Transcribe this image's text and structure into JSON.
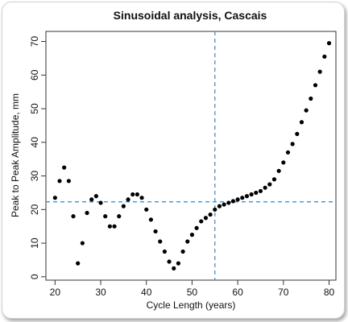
{
  "chart_data": {
    "type": "scatter",
    "title": "Sinusoidal analysis, Cascais",
    "xlabel": "Cycle Length (years)",
    "ylabel": "Peak to Peak Amplitude, mm",
    "xlim": [
      18,
      81.5
    ],
    "ylim": [
      -1,
      73
    ],
    "xticks": [
      "20",
      "30",
      "40",
      "50",
      "60",
      "70",
      "80"
    ],
    "yticks": [
      "0",
      "10",
      "20",
      "30",
      "40",
      "50",
      "60",
      "70"
    ],
    "grid": false,
    "legend": "none",
    "reference_lines": {
      "vertical_x": 55,
      "horizontal_y": 22.3,
      "color": "#4a90c8"
    },
    "point_color": "#000000",
    "x": [
      20,
      21,
      22,
      23,
      24,
      25,
      26,
      27,
      28,
      29,
      30,
      31,
      32,
      33,
      34,
      35,
      36,
      37,
      38,
      39,
      40,
      41,
      42,
      43,
      44,
      45,
      46,
      47,
      48,
      49,
      50,
      51,
      52,
      53,
      54,
      55,
      56,
      57,
      58,
      59,
      60,
      61,
      62,
      63,
      64,
      65,
      66,
      67,
      68,
      69,
      70,
      71,
      72,
      73,
      74,
      75,
      76,
      77,
      78,
      79,
      80
    ],
    "y": [
      23.5,
      28.5,
      32.5,
      28.5,
      18,
      4,
      10,
      19,
      23,
      24,
      22,
      18,
      15,
      15,
      18,
      21,
      23,
      24.5,
      24.5,
      23.5,
      20,
      17,
      13.5,
      10.5,
      7.5,
      4.5,
      2.5,
      4,
      7.5,
      10.5,
      12.5,
      14.5,
      16.5,
      17.5,
      18.5,
      20,
      21,
      21.5,
      22,
      22.5,
      23,
      23.5,
      24,
      24.5,
      25,
      25.5,
      26.5,
      27.5,
      29,
      31.5,
      34,
      37,
      39.5,
      42.5,
      46,
      49.5,
      53,
      57,
      61,
      65.5,
      69.5
    ]
  }
}
